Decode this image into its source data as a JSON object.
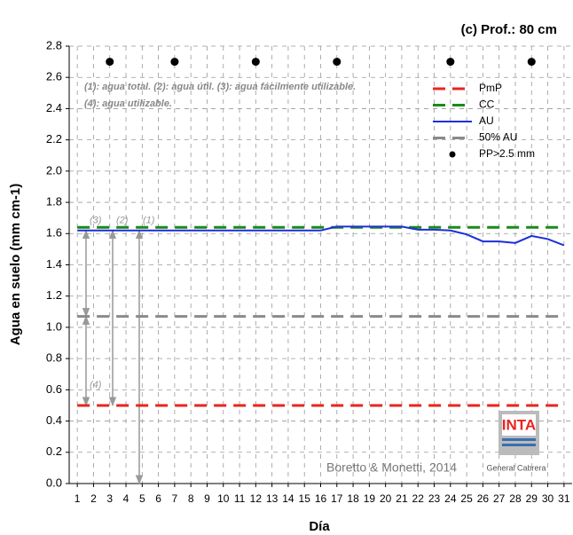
{
  "chart_data": {
    "type": "line",
    "title": "(c) Prof.: 80 cm",
    "x_label": "Día",
    "y_label": "Agua en suelo (mm cm-1)",
    "xlim": [
      0.5,
      31.5
    ],
    "xticks": [
      1,
      2,
      3,
      4,
      5,
      6,
      7,
      8,
      9,
      10,
      11,
      12,
      13,
      14,
      15,
      16,
      17,
      18,
      19,
      20,
      21,
      22,
      23,
      24,
      25,
      26,
      27,
      28,
      29,
      30,
      31
    ],
    "ylim": [
      0,
      2.8
    ],
    "yticks": [
      {
        "value": 0,
        "label": "0.0"
      },
      0.2,
      0.4,
      0.6,
      0.8,
      {
        "value": 1,
        "label": "1.0"
      },
      1.2,
      1.4,
      1.6,
      1.8,
      {
        "value": 2,
        "label": "2.0"
      },
      2.2,
      2.4,
      2.6,
      2.8
    ],
    "grid": true,
    "legend": "upper right",
    "series": [
      {
        "name": "PmP",
        "color": "#e8251f",
        "style": "dashed",
        "x": [
          1,
          31
        ],
        "values": [
          0.5,
          0.5
        ]
      },
      {
        "name": "CC",
        "color": "#1a8a1a",
        "style": "dashed",
        "x": [
          1,
          31
        ],
        "values": [
          1.64,
          1.64
        ]
      },
      {
        "name": "AU",
        "color": "#1a2fd8",
        "style": "solid",
        "x": [
          1,
          2,
          3,
          4,
          5,
          6,
          7,
          8,
          9,
          10,
          11,
          12,
          13,
          14,
          15,
          16,
          17,
          18,
          19,
          20,
          21,
          22,
          23,
          24,
          25,
          26,
          27,
          28,
          29,
          30,
          31
        ],
        "values": [
          1.62,
          1.62,
          1.62,
          1.62,
          1.62,
          1.62,
          1.62,
          1.62,
          1.62,
          1.62,
          1.62,
          1.62,
          1.62,
          1.62,
          1.62,
          1.62,
          1.645,
          1.645,
          1.645,
          1.645,
          1.645,
          1.625,
          1.625,
          1.62,
          1.595,
          1.55,
          1.55,
          1.54,
          1.585,
          1.565,
          1.525
        ]
      },
      {
        "name": "50% AU",
        "color": "#8a8a8a",
        "style": "dashed",
        "x": [
          1,
          31
        ],
        "values": [
          1.07,
          1.07
        ]
      },
      {
        "name": "PP>2.5 mm",
        "color": "#000000",
        "style": "markers",
        "x": [
          3,
          7,
          12,
          17,
          24,
          29
        ],
        "values": [
          2.7,
          2.7,
          2.7,
          2.7,
          2.7,
          2.7
        ]
      }
    ],
    "notes": [
      "(1): agua total.  (2): agua útil.  (3): agua fácilmente utilizable.",
      "(4): agua utilizable."
    ],
    "arrow_labels": [
      "(3)",
      "(2)",
      "(1)",
      "(4)"
    ],
    "credit": "Boretto & Monetti, 2014",
    "logo_text": "INTA",
    "logo_caption": "General Cabrera"
  }
}
